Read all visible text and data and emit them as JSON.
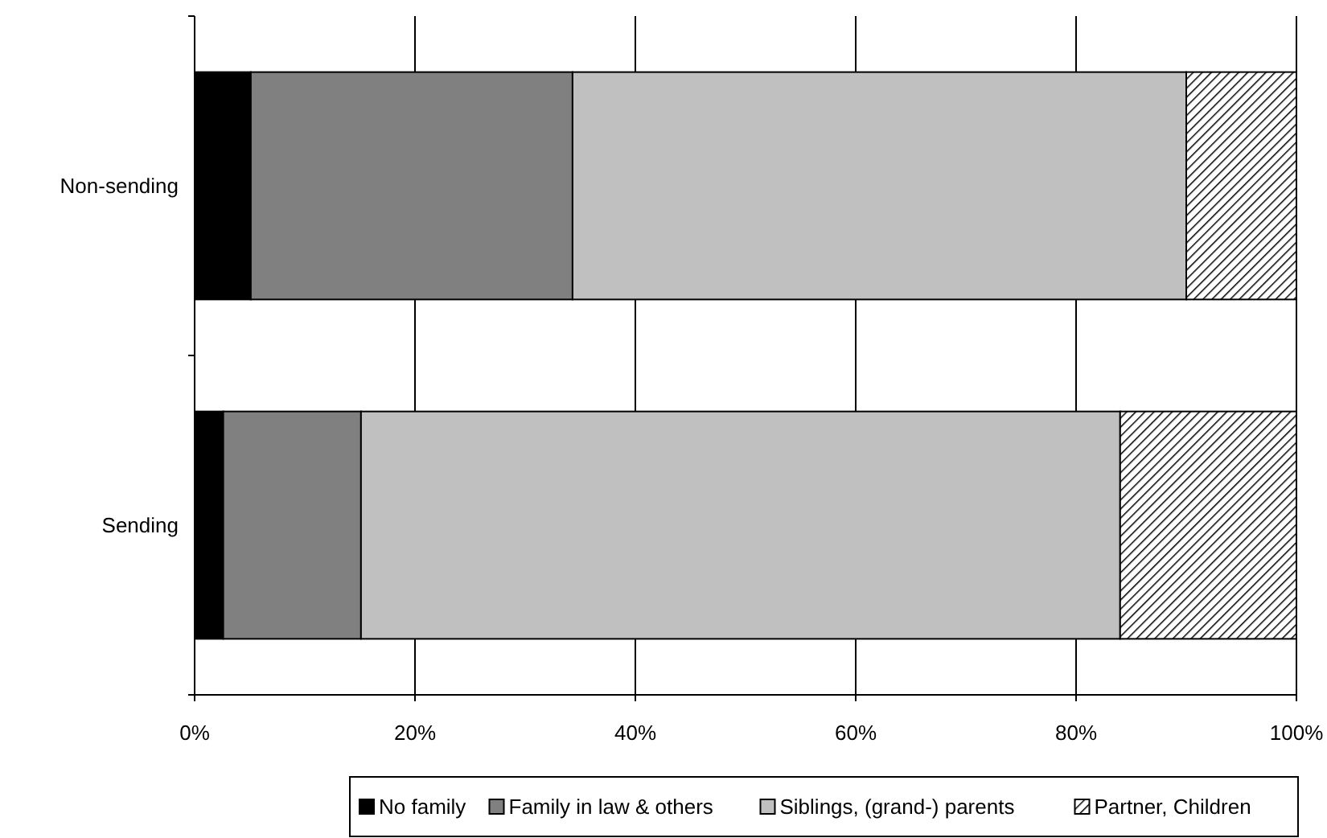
{
  "chart_data": {
    "type": "bar",
    "orientation": "horizontal",
    "stacked": true,
    "categories": [
      "Non-sending",
      "Sending"
    ],
    "series": [
      {
        "name": "No family",
        "color": "#000000",
        "values": [
          5.1,
          2.6
        ]
      },
      {
        "name": "Family in law & others",
        "color": "#808080",
        "values": [
          29.2,
          12.5
        ]
      },
      {
        "name": "Siblings, (grand-) parents",
        "color": "#c0c0c0",
        "values": [
          55.7,
          68.9
        ]
      },
      {
        "name": "Partner, Children",
        "color": "#000000",
        "values": [
          10.0,
          16.0
        ]
      }
    ],
    "xlim": [
      0,
      100
    ],
    "xticks": [
      {
        "value": 0,
        "label": "0%"
      },
      {
        "value": 20,
        "label": "20%"
      },
      {
        "value": 40,
        "label": "40%"
      },
      {
        "value": 60,
        "label": "60%"
      },
      {
        "value": 80,
        "label": "80%"
      },
      {
        "value": 100,
        "label": "100%"
      }
    ],
    "grid": "x",
    "legend": "bottom"
  }
}
